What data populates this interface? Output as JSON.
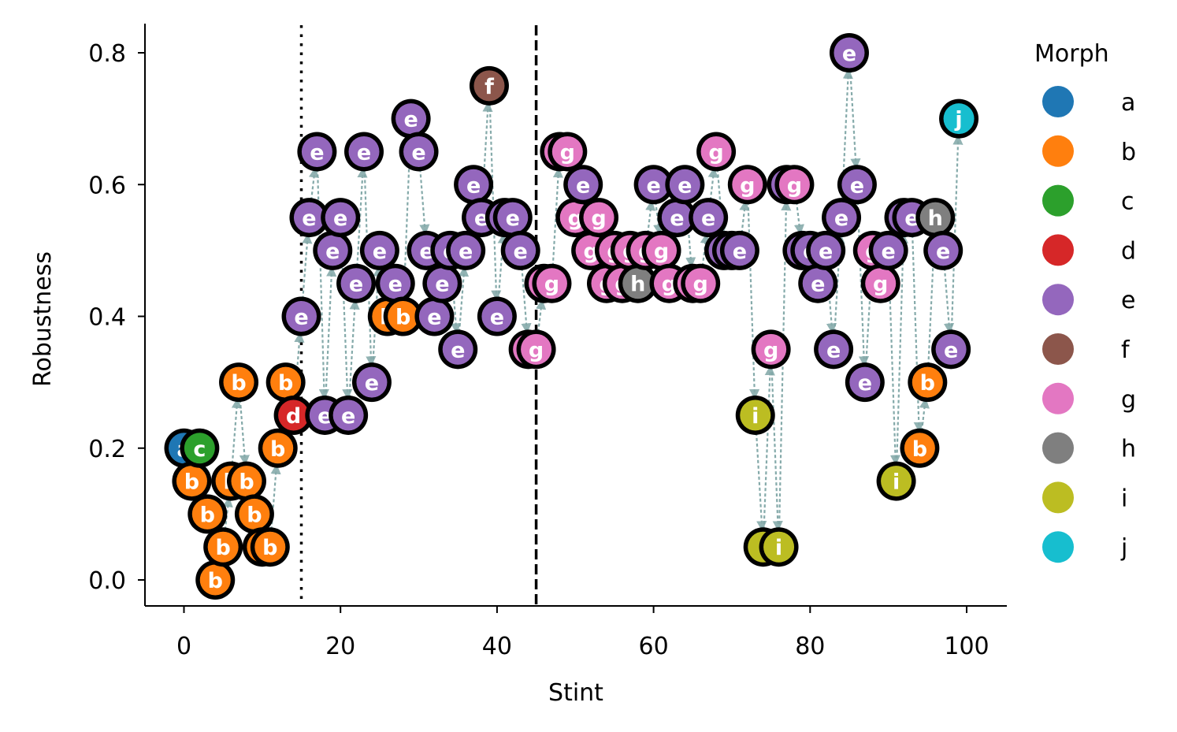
{
  "chart_data": {
    "type": "scatter",
    "title": "",
    "xlabel": "Stint",
    "ylabel": "Robustness",
    "xlim": [
      -5,
      105
    ],
    "ylim": [
      -0.04,
      0.84
    ],
    "x_ticks": [
      0,
      20,
      40,
      60,
      80,
      100
    ],
    "x_tick_labels": [
      "0",
      "20",
      "40",
      "60",
      "80",
      "100"
    ],
    "y_ticks": [
      0.0,
      0.2,
      0.4,
      0.6,
      0.8
    ],
    "y_tick_labels": [
      "0.0",
      "0.2",
      "0.4",
      "0.6",
      "0.8"
    ],
    "vlines": [
      {
        "x": 15,
        "style": "dotted"
      },
      {
        "x": 45,
        "style": "dashed"
      }
    ],
    "legend": {
      "title": "Morph",
      "placement": "right",
      "entries": [
        {
          "label": "a",
          "color": "#1f77b4"
        },
        {
          "label": "b",
          "color": "#ff7f0e"
        },
        {
          "label": "c",
          "color": "#2ca02c"
        },
        {
          "label": "d",
          "color": "#d62728"
        },
        {
          "label": "e",
          "color": "#9467bd"
        },
        {
          "label": "f",
          "color": "#8c564b"
        },
        {
          "label": "g",
          "color": "#e377c2"
        },
        {
          "label": "h",
          "color": "#7f7f7f"
        },
        {
          "label": "i",
          "color": "#bcbd22"
        },
        {
          "label": "j",
          "color": "#17becf"
        }
      ]
    },
    "arrow_color": "#7fa6a6",
    "points": [
      {
        "x": 0,
        "y": 0.2,
        "morph": "a"
      },
      {
        "x": 1,
        "y": 0.15,
        "morph": "b"
      },
      {
        "x": 2,
        "y": 0.2,
        "morph": "c"
      },
      {
        "x": 3,
        "y": 0.1,
        "morph": "b"
      },
      {
        "x": 4,
        "y": 0.0,
        "morph": "b"
      },
      {
        "x": 5,
        "y": 0.05,
        "morph": "b"
      },
      {
        "x": 6,
        "y": 0.15,
        "morph": "b"
      },
      {
        "x": 7,
        "y": 0.3,
        "morph": "b"
      },
      {
        "x": 8,
        "y": 0.15,
        "morph": "b"
      },
      {
        "x": 9,
        "y": 0.1,
        "morph": "b"
      },
      {
        "x": 10,
        "y": 0.05,
        "morph": "b"
      },
      {
        "x": 11,
        "y": 0.05,
        "morph": "b"
      },
      {
        "x": 12,
        "y": 0.2,
        "morph": "b"
      },
      {
        "x": 13,
        "y": 0.3,
        "morph": "b"
      },
      {
        "x": 14,
        "y": 0.25,
        "morph": "d"
      },
      {
        "x": 15,
        "y": 0.4,
        "morph": "e"
      },
      {
        "x": 16,
        "y": 0.55,
        "morph": "e"
      },
      {
        "x": 17,
        "y": 0.65,
        "morph": "e"
      },
      {
        "x": 18,
        "y": 0.25,
        "morph": "e"
      },
      {
        "x": 19,
        "y": 0.5,
        "morph": "e"
      },
      {
        "x": 20,
        "y": 0.55,
        "morph": "e"
      },
      {
        "x": 21,
        "y": 0.25,
        "morph": "e"
      },
      {
        "x": 22,
        "y": 0.45,
        "morph": "e"
      },
      {
        "x": 23,
        "y": 0.65,
        "morph": "e"
      },
      {
        "x": 24,
        "y": 0.3,
        "morph": "e"
      },
      {
        "x": 25,
        "y": 0.5,
        "morph": "e"
      },
      {
        "x": 26,
        "y": 0.4,
        "morph": "b"
      },
      {
        "x": 27,
        "y": 0.45,
        "morph": "e"
      },
      {
        "x": 28,
        "y": 0.4,
        "morph": "b"
      },
      {
        "x": 29,
        "y": 0.7,
        "morph": "e"
      },
      {
        "x": 30,
        "y": 0.65,
        "morph": "e"
      },
      {
        "x": 31,
        "y": 0.5,
        "morph": "e"
      },
      {
        "x": 32,
        "y": 0.4,
        "morph": "e"
      },
      {
        "x": 33,
        "y": 0.45,
        "morph": "e"
      },
      {
        "x": 34,
        "y": 0.5,
        "morph": "e"
      },
      {
        "x": 35,
        "y": 0.35,
        "morph": "e"
      },
      {
        "x": 36,
        "y": 0.5,
        "morph": "e"
      },
      {
        "x": 37,
        "y": 0.6,
        "morph": "e"
      },
      {
        "x": 38,
        "y": 0.55,
        "morph": "e"
      },
      {
        "x": 39,
        "y": 0.75,
        "morph": "f"
      },
      {
        "x": 40,
        "y": 0.4,
        "morph": "e"
      },
      {
        "x": 41,
        "y": 0.55,
        "morph": "e"
      },
      {
        "x": 42,
        "y": 0.55,
        "morph": "e"
      },
      {
        "x": 43,
        "y": 0.5,
        "morph": "e"
      },
      {
        "x": 44,
        "y": 0.35,
        "morph": "g"
      },
      {
        "x": 45,
        "y": 0.35,
        "morph": "g"
      },
      {
        "x": 46,
        "y": 0.45,
        "morph": "g"
      },
      {
        "x": 47,
        "y": 0.45,
        "morph": "g"
      },
      {
        "x": 48,
        "y": 0.65,
        "morph": "g"
      },
      {
        "x": 49,
        "y": 0.65,
        "morph": "g"
      },
      {
        "x": 50,
        "y": 0.55,
        "morph": "g"
      },
      {
        "x": 51,
        "y": 0.6,
        "morph": "e"
      },
      {
        "x": 52,
        "y": 0.5,
        "morph": "g"
      },
      {
        "x": 53,
        "y": 0.55,
        "morph": "g"
      },
      {
        "x": 54,
        "y": 0.45,
        "morph": "g"
      },
      {
        "x": 55,
        "y": 0.5,
        "morph": "g"
      },
      {
        "x": 56,
        "y": 0.45,
        "morph": "g"
      },
      {
        "x": 57,
        "y": 0.5,
        "morph": "g"
      },
      {
        "x": 58,
        "y": 0.45,
        "morph": "h"
      },
      {
        "x": 59,
        "y": 0.5,
        "morph": "g"
      },
      {
        "x": 60,
        "y": 0.6,
        "morph": "e"
      },
      {
        "x": 61,
        "y": 0.5,
        "morph": "g"
      },
      {
        "x": 62,
        "y": 0.45,
        "morph": "g"
      },
      {
        "x": 63,
        "y": 0.55,
        "morph": "e"
      },
      {
        "x": 64,
        "y": 0.6,
        "morph": "e"
      },
      {
        "x": 65,
        "y": 0.45,
        "morph": "g"
      },
      {
        "x": 66,
        "y": 0.45,
        "morph": "g"
      },
      {
        "x": 67,
        "y": 0.55,
        "morph": "e"
      },
      {
        "x": 68,
        "y": 0.65,
        "morph": "g"
      },
      {
        "x": 69,
        "y": 0.5,
        "morph": "e"
      },
      {
        "x": 70,
        "y": 0.5,
        "morph": "e"
      },
      {
        "x": 71,
        "y": 0.5,
        "morph": "e"
      },
      {
        "x": 72,
        "y": 0.6,
        "morph": "g"
      },
      {
        "x": 73,
        "y": 0.25,
        "morph": "i"
      },
      {
        "x": 74,
        "y": 0.05,
        "morph": "i"
      },
      {
        "x": 75,
        "y": 0.35,
        "morph": "g"
      },
      {
        "x": 76,
        "y": 0.05,
        "morph": "i"
      },
      {
        "x": 77,
        "y": 0.6,
        "morph": "e"
      },
      {
        "x": 78,
        "y": 0.6,
        "morph": "g"
      },
      {
        "x": 79,
        "y": 0.5,
        "morph": "e"
      },
      {
        "x": 80,
        "y": 0.5,
        "morph": "e"
      },
      {
        "x": 81,
        "y": 0.45,
        "morph": "e"
      },
      {
        "x": 82,
        "y": 0.5,
        "morph": "e"
      },
      {
        "x": 83,
        "y": 0.35,
        "morph": "e"
      },
      {
        "x": 84,
        "y": 0.55,
        "morph": "e"
      },
      {
        "x": 85,
        "y": 0.8,
        "morph": "e"
      },
      {
        "x": 86,
        "y": 0.6,
        "morph": "e"
      },
      {
        "x": 87,
        "y": 0.3,
        "morph": "e"
      },
      {
        "x": 88,
        "y": 0.5,
        "morph": "g"
      },
      {
        "x": 89,
        "y": 0.45,
        "morph": "g"
      },
      {
        "x": 90,
        "y": 0.5,
        "morph": "e"
      },
      {
        "x": 91,
        "y": 0.15,
        "morph": "i"
      },
      {
        "x": 92,
        "y": 0.55,
        "morph": "e"
      },
      {
        "x": 93,
        "y": 0.55,
        "morph": "e"
      },
      {
        "x": 94,
        "y": 0.2,
        "morph": "b"
      },
      {
        "x": 95,
        "y": 0.3,
        "morph": "b"
      },
      {
        "x": 96,
        "y": 0.55,
        "morph": "h"
      },
      {
        "x": 97,
        "y": 0.5,
        "morph": "e"
      },
      {
        "x": 98,
        "y": 0.35,
        "morph": "e"
      },
      {
        "x": 99,
        "y": 0.7,
        "morph": "j"
      }
    ]
  }
}
